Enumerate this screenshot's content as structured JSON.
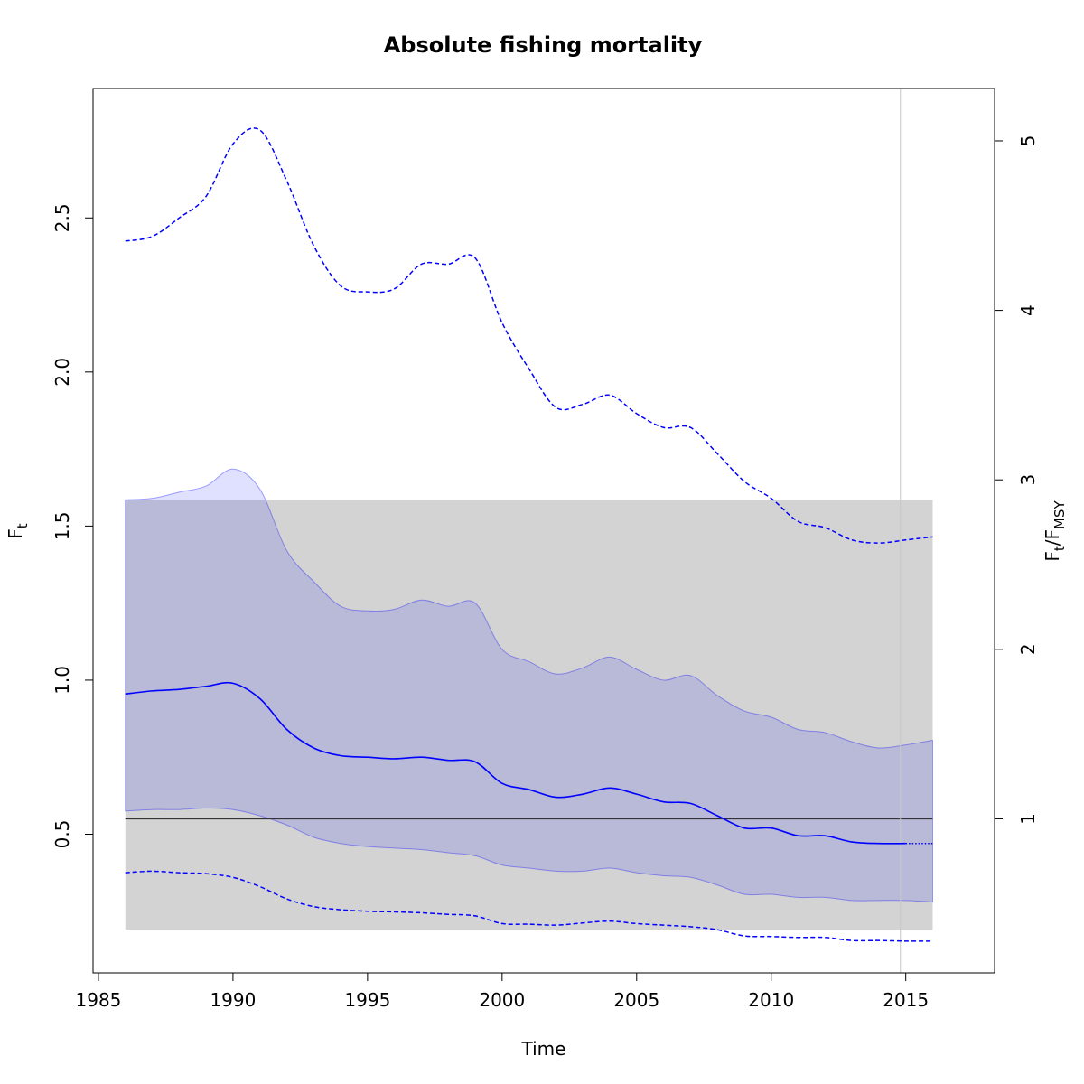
{
  "chart_data": {
    "type": "line",
    "title": "Absolute fishing mortality",
    "xlabel": "Time",
    "ylabel": "F",
    "ylabel_sub": "t",
    "y2label": {
      "num": "F",
      "num_sub": "t",
      "sep": "/F",
      "den_sub": "MSY"
    },
    "xlim": [
      1984.8,
      2018.3
    ],
    "ylim": [
      0.05,
      2.92
    ],
    "y2lim": [
      0.091,
      5.309
    ],
    "x_ticks": [
      1985,
      1990,
      1995,
      2000,
      2005,
      2010,
      2015
    ],
    "y_ticks": [
      0.5,
      1.0,
      1.5,
      2.0,
      2.5
    ],
    "y_tick_labels": [
      "0.5",
      "1.0",
      "1.5",
      "2.0",
      "2.5"
    ],
    "y2_ticks": [
      1,
      2,
      3,
      4,
      5
    ],
    "grid": false,
    "colors": {
      "series": "#0000ff",
      "ci_fill": "#0000ff",
      "ref_band": "#d3d3d3",
      "ref_line": "#333333",
      "vline": "#c8c8c8"
    },
    "reference": {
      "fmsy": 0.55,
      "band_x": [
        1986,
        2016
      ],
      "band_y": [
        0.19,
        1.585
      ]
    },
    "vline_x": 2014.8,
    "projection_start": 2015,
    "series": [
      {
        "role": "estimate",
        "x": [
          1986,
          1987,
          1988,
          1989,
          1990,
          1991,
          1992,
          1993,
          1994,
          1995,
          1996,
          1997,
          1998,
          1999,
          2000,
          2001,
          2002,
          2003,
          2004,
          2005,
          2006,
          2007,
          2008,
          2009,
          2010,
          2011,
          2012,
          2013,
          2014,
          2015
        ],
        "y": [
          0.955,
          0.965,
          0.97,
          0.98,
          0.99,
          0.94,
          0.84,
          0.78,
          0.755,
          0.75,
          0.745,
          0.75,
          0.74,
          0.735,
          0.665,
          0.645,
          0.62,
          0.63,
          0.65,
          0.63,
          0.605,
          0.6,
          0.56,
          0.52,
          0.52,
          0.495,
          0.495,
          0.475,
          0.47,
          0.47
        ]
      },
      {
        "role": "estimate_projection",
        "x": [
          2015,
          2016
        ],
        "y": [
          0.47,
          0.47
        ]
      },
      {
        "role": "ci_upper",
        "x": [
          1986,
          1987,
          1988,
          1989,
          1990,
          1991,
          1992,
          1993,
          1994,
          1995,
          1996,
          1997,
          1998,
          1999,
          2000,
          2001,
          2002,
          2003,
          2004,
          2005,
          2006,
          2007,
          2008,
          2009,
          2010,
          2011,
          2012,
          2013,
          2014,
          2015,
          2016
        ],
        "y": [
          1.585,
          1.59,
          1.61,
          1.63,
          1.685,
          1.62,
          1.42,
          1.32,
          1.24,
          1.225,
          1.23,
          1.26,
          1.24,
          1.25,
          1.1,
          1.06,
          1.02,
          1.04,
          1.075,
          1.035,
          1.0,
          1.015,
          0.95,
          0.9,
          0.88,
          0.84,
          0.83,
          0.8,
          0.78,
          0.79,
          0.805
        ]
      },
      {
        "role": "ci_lower",
        "x": [
          1986,
          1987,
          1988,
          1989,
          1990,
          1991,
          1992,
          1993,
          1994,
          1995,
          1996,
          1997,
          1998,
          1999,
          2000,
          2001,
          2002,
          2003,
          2004,
          2005,
          2006,
          2007,
          2008,
          2009,
          2010,
          2011,
          2012,
          2013,
          2014,
          2015,
          2016
        ],
        "y": [
          0.575,
          0.58,
          0.58,
          0.585,
          0.58,
          0.56,
          0.53,
          0.49,
          0.47,
          0.46,
          0.455,
          0.45,
          0.44,
          0.43,
          0.4,
          0.39,
          0.38,
          0.38,
          0.39,
          0.375,
          0.365,
          0.36,
          0.335,
          0.305,
          0.305,
          0.295,
          0.295,
          0.285,
          0.285,
          0.285,
          0.28
        ]
      },
      {
        "role": "upper_dashed",
        "x": [
          1986,
          1987,
          1988,
          1989,
          1990,
          1991,
          1992,
          1993,
          1994,
          1995,
          1996,
          1997,
          1998,
          1999,
          2000,
          2001,
          2002,
          2003,
          2004,
          2005,
          2006,
          2007,
          2008,
          2009,
          2010,
          2011,
          2012,
          2013,
          2014,
          2015,
          2016
        ],
        "y": [
          2.425,
          2.44,
          2.5,
          2.57,
          2.74,
          2.785,
          2.62,
          2.41,
          2.28,
          2.26,
          2.27,
          2.35,
          2.35,
          2.37,
          2.16,
          2.01,
          1.885,
          1.895,
          1.925,
          1.865,
          1.82,
          1.82,
          1.735,
          1.645,
          1.59,
          1.515,
          1.495,
          1.455,
          1.445,
          1.455,
          1.465
        ]
      },
      {
        "role": "lower_dashed",
        "x": [
          1986,
          1987,
          1988,
          1989,
          1990,
          1991,
          1992,
          1993,
          1994,
          1995,
          1996,
          1997,
          1998,
          1999,
          2000,
          2001,
          2002,
          2003,
          2004,
          2005,
          2006,
          2007,
          2008,
          2009,
          2010,
          2011,
          2012,
          2013,
          2014,
          2015,
          2016
        ],
        "y": [
          0.375,
          0.38,
          0.375,
          0.372,
          0.36,
          0.33,
          0.29,
          0.265,
          0.255,
          0.25,
          0.248,
          0.245,
          0.24,
          0.235,
          0.21,
          0.208,
          0.205,
          0.212,
          0.218,
          0.21,
          0.205,
          0.2,
          0.19,
          0.17,
          0.168,
          0.165,
          0.165,
          0.155,
          0.155,
          0.153,
          0.153
        ]
      }
    ]
  }
}
